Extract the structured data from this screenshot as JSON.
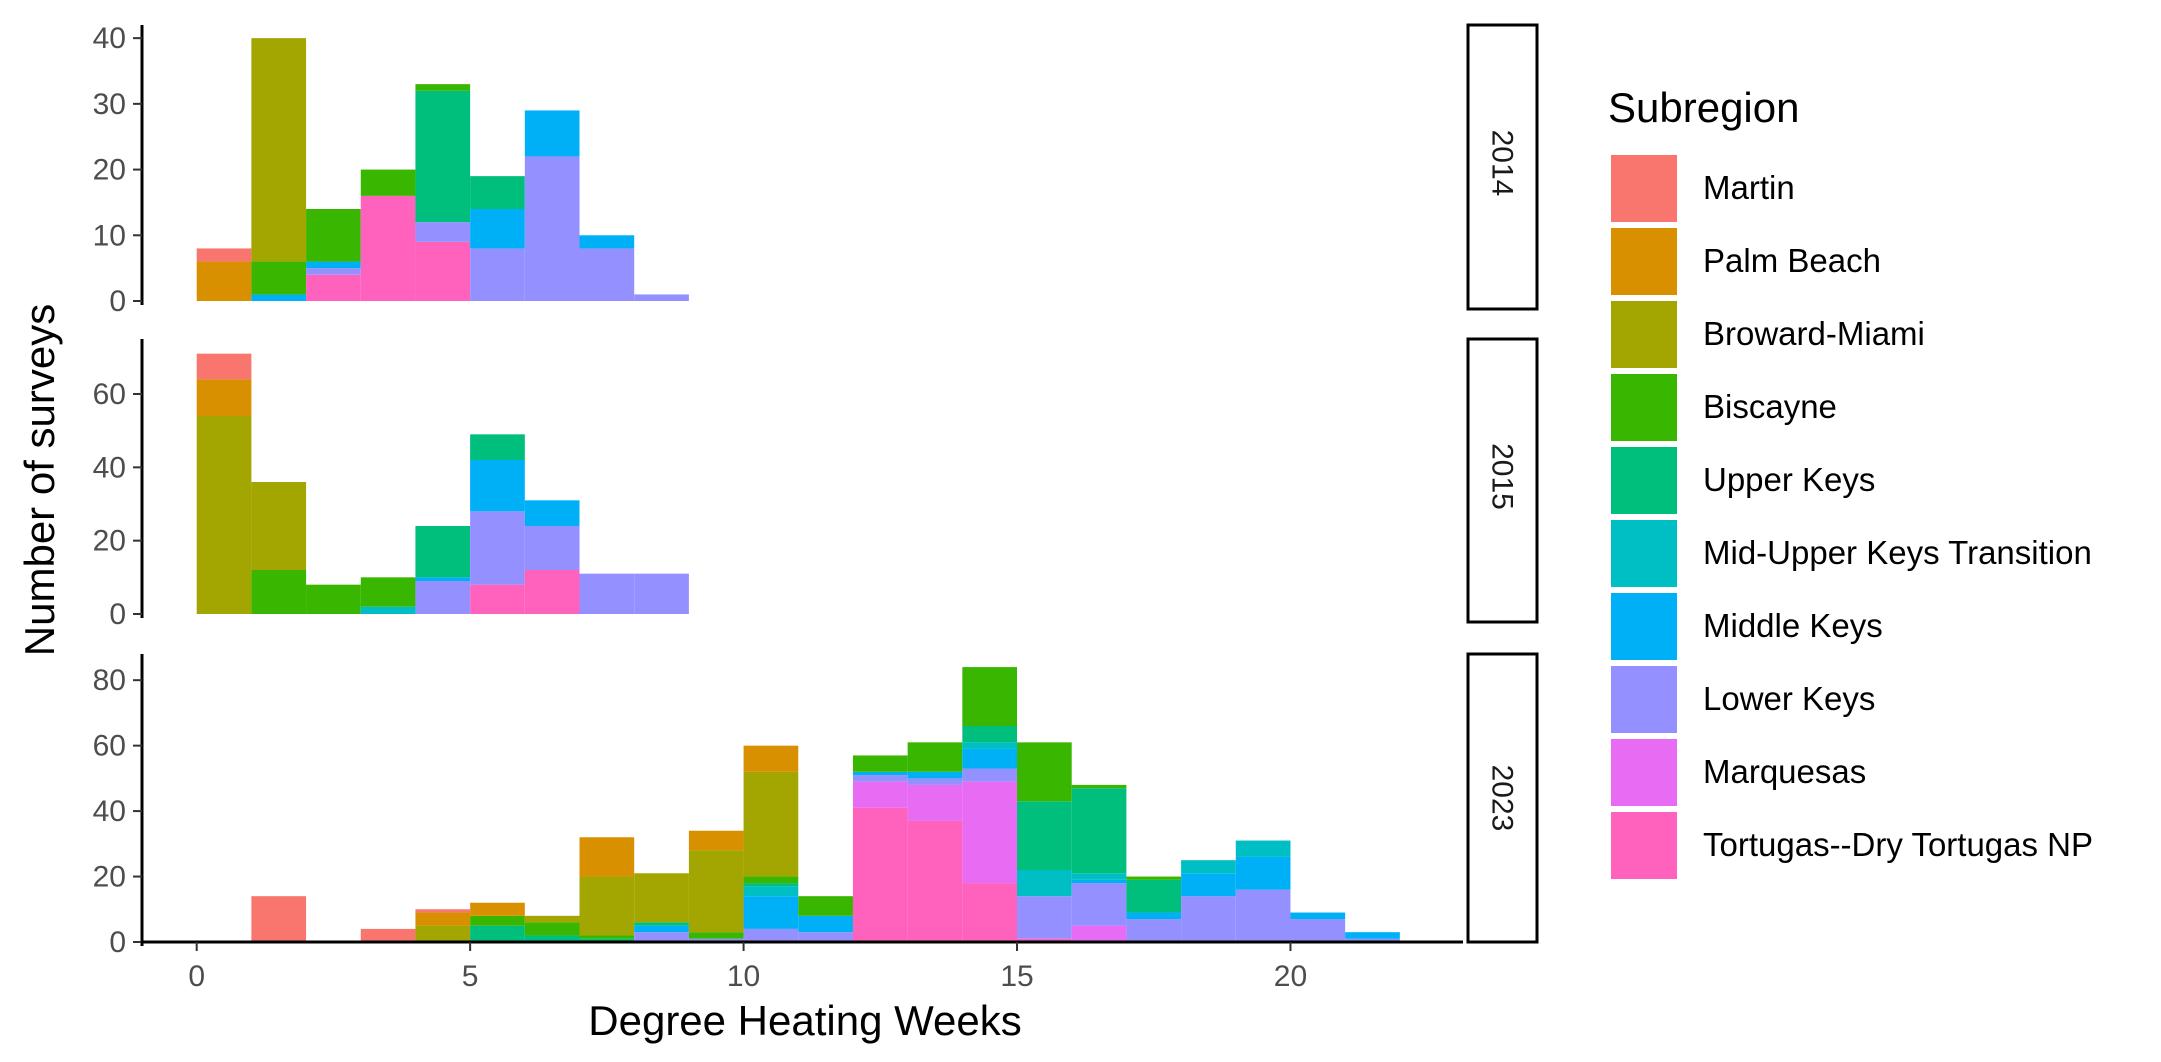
{
  "chart_data": {
    "type": "bar",
    "stacked": true,
    "xlabel": "Degree Heating Weeks",
    "ylabel": "Number of surveys",
    "xlim": [
      -1,
      23.1
    ],
    "x_ticks": [
      0,
      5,
      10,
      15,
      20
    ],
    "bin_width": 1,
    "legend": {
      "title": "Subregion",
      "position": "right"
    },
    "grid": false,
    "series": [
      {
        "name": "Martin",
        "color": "#F8766D"
      },
      {
        "name": "Palm Beach",
        "color": "#D89000"
      },
      {
        "name": "Broward-Miami",
        "color": "#A3A500"
      },
      {
        "name": "Biscayne",
        "color": "#39B600"
      },
      {
        "name": "Upper Keys",
        "color": "#00BF7D"
      },
      {
        "name": "Mid-Upper Keys Transition",
        "color": "#00BFC4"
      },
      {
        "name": "Middle Keys",
        "color": "#00B0F6"
      },
      {
        "name": "Lower Keys",
        "color": "#9590FF"
      },
      {
        "name": "Marquesas",
        "color": "#E76BF3"
      },
      {
        "name": "Tortugas--Dry Tortugas NP",
        "color": "#FF62BC"
      }
    ],
    "panels": [
      {
        "label": "2014",
        "ylim": [
          0,
          42
        ],
        "y_ticks": [
          0,
          10,
          20,
          30,
          40
        ],
        "bins": [
          {
            "x0": 0,
            "counts": {
              "Palm Beach": 6,
              "Martin": 2
            }
          },
          {
            "x0": 1,
            "counts": {
              "Middle Keys": 1,
              "Biscayne": 5,
              "Broward-Miami": 34
            }
          },
          {
            "x0": 2,
            "counts": {
              "Tortugas--Dry Tortugas NP": 4,
              "Lower Keys": 1,
              "Middle Keys": 1,
              "Biscayne": 8
            }
          },
          {
            "x0": 3,
            "counts": {
              "Tortugas--Dry Tortugas NP": 16,
              "Biscayne": 4
            }
          },
          {
            "x0": 4,
            "counts": {
              "Tortugas--Dry Tortugas NP": 9,
              "Lower Keys": 3,
              "Upper Keys": 20,
              "Biscayne": 1
            }
          },
          {
            "x0": 5,
            "counts": {
              "Lower Keys": 8,
              "Middle Keys": 6,
              "Upper Keys": 5
            }
          },
          {
            "x0": 6,
            "counts": {
              "Lower Keys": 22,
              "Middle Keys": 7
            }
          },
          {
            "x0": 7,
            "counts": {
              "Lower Keys": 8,
              "Middle Keys": 2
            }
          },
          {
            "x0": 8,
            "counts": {
              "Lower Keys": 1
            }
          }
        ]
      },
      {
        "label": "2015",
        "ylim": [
          0,
          75
        ],
        "y_ticks": [
          0,
          20,
          40,
          60
        ],
        "bins": [
          {
            "x0": 0,
            "counts": {
              "Broward-Miami": 54,
              "Palm Beach": 10,
              "Martin": 7
            }
          },
          {
            "x0": 1,
            "counts": {
              "Biscayne": 12,
              "Broward-Miami": 24
            }
          },
          {
            "x0": 2,
            "counts": {
              "Biscayne": 8
            }
          },
          {
            "x0": 3,
            "counts": {
              "Mid-Upper Keys Transition": 2,
              "Biscayne": 8
            }
          },
          {
            "x0": 4,
            "counts": {
              "Lower Keys": 9,
              "Middle Keys": 1,
              "Upper Keys": 14
            }
          },
          {
            "x0": 5,
            "counts": {
              "Tortugas--Dry Tortugas NP": 8,
              "Lower Keys": 20,
              "Middle Keys": 14,
              "Upper Keys": 7
            }
          },
          {
            "x0": 6,
            "counts": {
              "Tortugas--Dry Tortugas NP": 12,
              "Lower Keys": 12,
              "Middle Keys": 7
            }
          },
          {
            "x0": 7,
            "counts": {
              "Lower Keys": 11
            }
          },
          {
            "x0": 8,
            "counts": {
              "Lower Keys": 11
            }
          }
        ]
      },
      {
        "label": "2023",
        "ylim": [
          0,
          88
        ],
        "y_ticks": [
          0,
          20,
          40,
          60,
          80
        ],
        "bins": [
          {
            "x0": 1,
            "counts": {
              "Martin": 14
            }
          },
          {
            "x0": 3,
            "counts": {
              "Martin": 4
            }
          },
          {
            "x0": 4,
            "counts": {
              "Broward-Miami": 5,
              "Palm Beach": 4,
              "Martin": 1
            }
          },
          {
            "x0": 5,
            "counts": {
              "Upper Keys": 5,
              "Biscayne": 3,
              "Palm Beach": 4
            }
          },
          {
            "x0": 6,
            "counts": {
              "Upper Keys": 2,
              "Biscayne": 4,
              "Broward-Miami": 2
            }
          },
          {
            "x0": 7,
            "counts": {
              "Upper Keys": 1,
              "Biscayne": 1,
              "Broward-Miami": 18,
              "Palm Beach": 12
            }
          },
          {
            "x0": 8,
            "counts": {
              "Lower Keys": 3,
              "Middle Keys": 2,
              "Upper Keys": 1,
              "Broward-Miami": 15
            }
          },
          {
            "x0": 9,
            "counts": {
              "Lower Keys": 1,
              "Biscayne": 2,
              "Broward-Miami": 25,
              "Palm Beach": 6
            }
          },
          {
            "x0": 10,
            "counts": {
              "Lower Keys": 4,
              "Middle Keys": 10,
              "Mid-Upper Keys Transition": 3,
              "Upper Keys": 1,
              "Biscayne": 2,
              "Broward-Miami": 32,
              "Palm Beach": 8
            }
          },
          {
            "x0": 11,
            "counts": {
              "Lower Keys": 3,
              "Middle Keys": 5,
              "Biscayne": 6
            }
          },
          {
            "x0": 12,
            "counts": {
              "Tortugas--Dry Tortugas NP": 41,
              "Marquesas": 8,
              "Lower Keys": 2,
              "Middle Keys": 1,
              "Biscayne": 5
            }
          },
          {
            "x0": 13,
            "counts": {
              "Tortugas--Dry Tortugas NP": 37,
              "Marquesas": 11,
              "Lower Keys": 2,
              "Middle Keys": 2,
              "Biscayne": 9
            }
          },
          {
            "x0": 14,
            "counts": {
              "Tortugas--Dry Tortugas NP": 18,
              "Marquesas": 31,
              "Lower Keys": 4,
              "Middle Keys": 6,
              "Mid-Upper Keys Transition": 2,
              "Upper Keys": 5,
              "Biscayne": 18
            }
          },
          {
            "x0": 15,
            "counts": {
              "Tortugas--Dry Tortugas NP": 1,
              "Lower Keys": 13,
              "Mid-Upper Keys Transition": 8,
              "Upper Keys": 21,
              "Biscayne": 18
            }
          },
          {
            "x0": 16,
            "counts": {
              "Marquesas": 5,
              "Lower Keys": 13,
              "Middle Keys": 1,
              "Mid-Upper Keys Transition": 2,
              "Upper Keys": 26,
              "Biscayne": 1
            }
          },
          {
            "x0": 17,
            "counts": {
              "Lower Keys": 7,
              "Middle Keys": 2,
              "Upper Keys": 10,
              "Biscayne": 1
            }
          },
          {
            "x0": 18,
            "counts": {
              "Lower Keys": 14,
              "Middle Keys": 7,
              "Mid-Upper Keys Transition": 4
            }
          },
          {
            "x0": 19,
            "counts": {
              "Lower Keys": 16,
              "Middle Keys": 10,
              "Mid-Upper Keys Transition": 5
            }
          },
          {
            "x0": 20,
            "counts": {
              "Lower Keys": 7,
              "Middle Keys": 2
            }
          },
          {
            "x0": 21,
            "counts": {
              "Lower Keys": 1,
              "Middle Keys": 2
            }
          }
        ]
      }
    ]
  }
}
